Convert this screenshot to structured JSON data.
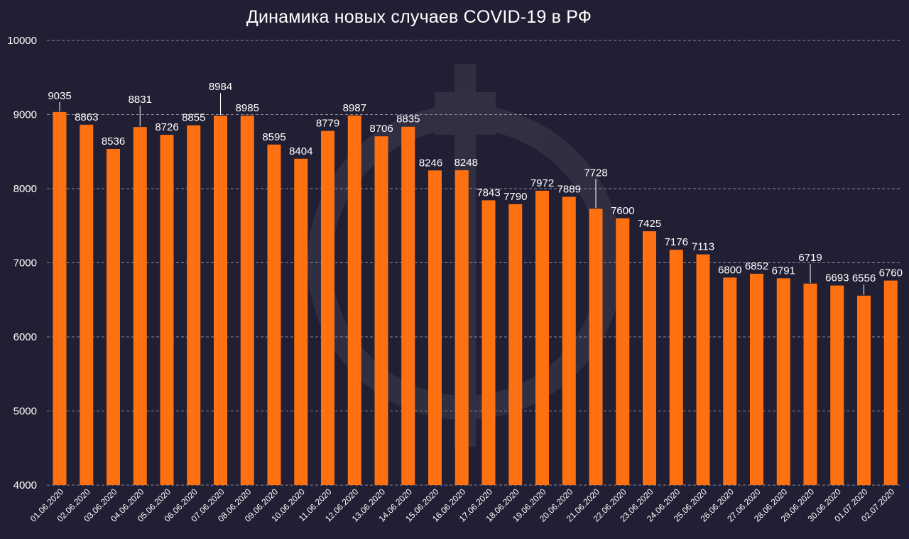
{
  "chart_data": {
    "type": "bar",
    "title": "Динамика новых случаев COVID-19 в РФ",
    "xlabel": "",
    "ylabel": "",
    "ylim": [
      4000,
      10000
    ],
    "yticks": [
      4000,
      5000,
      6000,
      7000,
      8000,
      9000,
      10000
    ],
    "grid": "horizontal-dashed",
    "bar_color": "#ff7011",
    "background": "#211f33",
    "categories": [
      "01.06.2020",
      "02.06.2020",
      "03.06.2020",
      "04.06.2020",
      "05.06.2020",
      "06.06.2020",
      "07.06.2020",
      "08.06.2020",
      "09.06.2020",
      "10.06.2020",
      "11.06.2020",
      "12.06.2020",
      "13.06.2020",
      "14.06.2020",
      "15.06.2020",
      "16.06.2020",
      "17.06.2020",
      "18.06.2020",
      "19.06.2020",
      "20.06.2020",
      "21.06.2020",
      "22.06.2020",
      "23.06.2020",
      "24.06.2020",
      "25.06.2020",
      "26.06.2020",
      "27.06.2020",
      "28.06.2020",
      "29.06.2020",
      "30.06.2020",
      "01.07.2020",
      "02.07.2020"
    ],
    "values": [
      9035,
      8863,
      8536,
      8831,
      8726,
      8855,
      8984,
      8985,
      8595,
      8404,
      8779,
      8987,
      8706,
      8835,
      8246,
      8248,
      7843,
      7790,
      7972,
      7889,
      7728,
      7600,
      7425,
      7176,
      7113,
      6800,
      6852,
      6791,
      6719,
      6693,
      6556,
      6760
    ]
  }
}
